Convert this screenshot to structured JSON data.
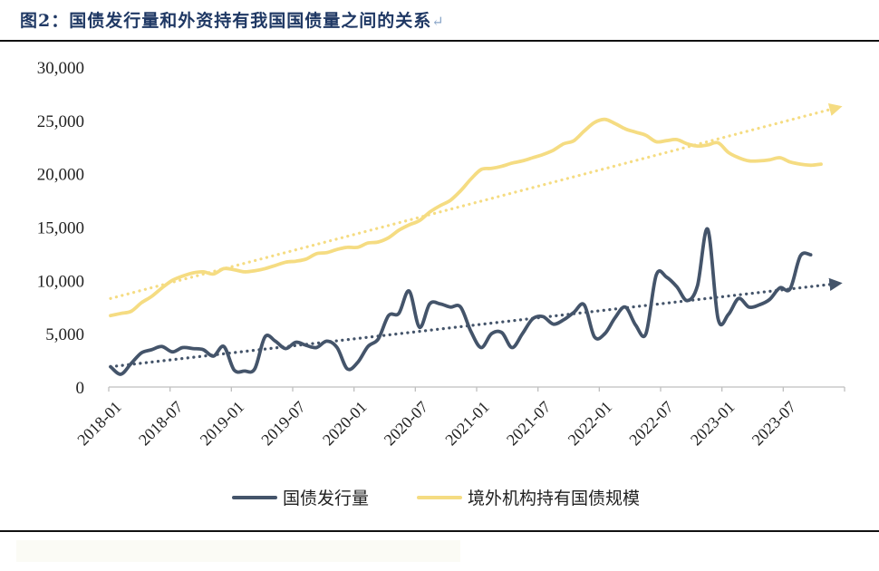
{
  "figure": {
    "title": "图2：国债发行量和外资持有我国国债量之间的关系",
    "title_mark": "↵"
  },
  "chart_data": {
    "type": "line",
    "title": "图2：国债发行量和外资持有我国国债量之间的关系",
    "xlabel": "",
    "ylabel": "",
    "ylim": [
      0,
      30000
    ],
    "yticks": [
      0,
      5000,
      10000,
      15000,
      20000,
      25000,
      30000
    ],
    "ytick_labels": [
      "0",
      "5,000",
      "10,000",
      "15,000",
      "20,000",
      "25,000",
      "30,000"
    ],
    "xtick_labels": [
      "2018-01",
      "2018-07",
      "2019-01",
      "2019-07",
      "2020-01",
      "2020-07",
      "2021-01",
      "2021-07",
      "2022-01",
      "2022-07",
      "2023-01",
      "2023-07"
    ],
    "x": [
      "2018-01",
      "2018-02",
      "2018-03",
      "2018-04",
      "2018-05",
      "2018-06",
      "2018-07",
      "2018-08",
      "2018-09",
      "2018-10",
      "2018-11",
      "2018-12",
      "2019-01",
      "2019-02",
      "2019-03",
      "2019-04",
      "2019-05",
      "2019-06",
      "2019-07",
      "2019-08",
      "2019-09",
      "2019-10",
      "2019-11",
      "2019-12",
      "2020-01",
      "2020-02",
      "2020-03",
      "2020-04",
      "2020-05",
      "2020-06",
      "2020-07",
      "2020-08",
      "2020-09",
      "2020-10",
      "2020-11",
      "2020-12",
      "2021-01",
      "2021-02",
      "2021-03",
      "2021-04",
      "2021-05",
      "2021-06",
      "2021-07",
      "2021-08",
      "2021-09",
      "2021-10",
      "2021-11",
      "2021-12",
      "2022-01",
      "2022-02",
      "2022-03",
      "2022-04",
      "2022-05",
      "2022-06",
      "2022-07",
      "2022-08",
      "2022-09",
      "2022-10",
      "2022-11",
      "2022-12",
      "2023-01",
      "2023-02",
      "2023-03",
      "2023-04",
      "2023-05",
      "2023-06",
      "2023-07",
      "2023-08",
      "2023-09",
      "2023-10"
    ],
    "legend_position": "bottom",
    "grid": false,
    "series": [
      {
        "name": "国债发行量",
        "color": "#44546a",
        "trendline": true,
        "values": [
          1900,
          1200,
          2200,
          3200,
          3500,
          3800,
          3300,
          3700,
          3600,
          3500,
          2900,
          3800,
          1600,
          1500,
          1700,
          4700,
          4300,
          3600,
          4200,
          3900,
          3700,
          4300,
          3700,
          1700,
          2300,
          3800,
          4500,
          6700,
          6900,
          9000,
          5600,
          7800,
          7800,
          7500,
          7500,
          5200,
          3700,
          5000,
          5100,
          3700,
          5000,
          6400,
          6600,
          5900,
          6300,
          7000,
          7700,
          4700,
          5000,
          6500,
          7500,
          5800,
          5000,
          10500,
          10300,
          9400,
          8100,
          9500,
          14800,
          6400,
          6800,
          8300,
          7500,
          7700,
          8200,
          9300,
          9200,
          12300,
          12400,
          null
        ],
        "trend_start": 1900,
        "trend_end": 9700
      },
      {
        "name": "境外机构持有国债规模",
        "color": "#f5dc82",
        "trendline": true,
        "values": [
          6700,
          6900,
          7100,
          7900,
          8500,
          9300,
          10000,
          10400,
          10700,
          10800,
          10600,
          11100,
          11000,
          10800,
          10900,
          11100,
          11400,
          11700,
          11800,
          12000,
          12500,
          12600,
          12900,
          13100,
          13100,
          13500,
          13600,
          14000,
          14700,
          15200,
          15600,
          16400,
          17000,
          17500,
          18400,
          19500,
          20400,
          20500,
          20700,
          21000,
          21200,
          21500,
          21800,
          22200,
          22800,
          23100,
          24000,
          24800,
          25100,
          24700,
          24200,
          23900,
          23600,
          23000,
          23100,
          23200,
          22800,
          22600,
          22700,
          22900,
          22000,
          21500,
          21200,
          21200,
          21300,
          21500,
          21100,
          20900,
          20800,
          20900
        ],
        "trend_start": 8300,
        "trend_end": 26200
      }
    ]
  }
}
